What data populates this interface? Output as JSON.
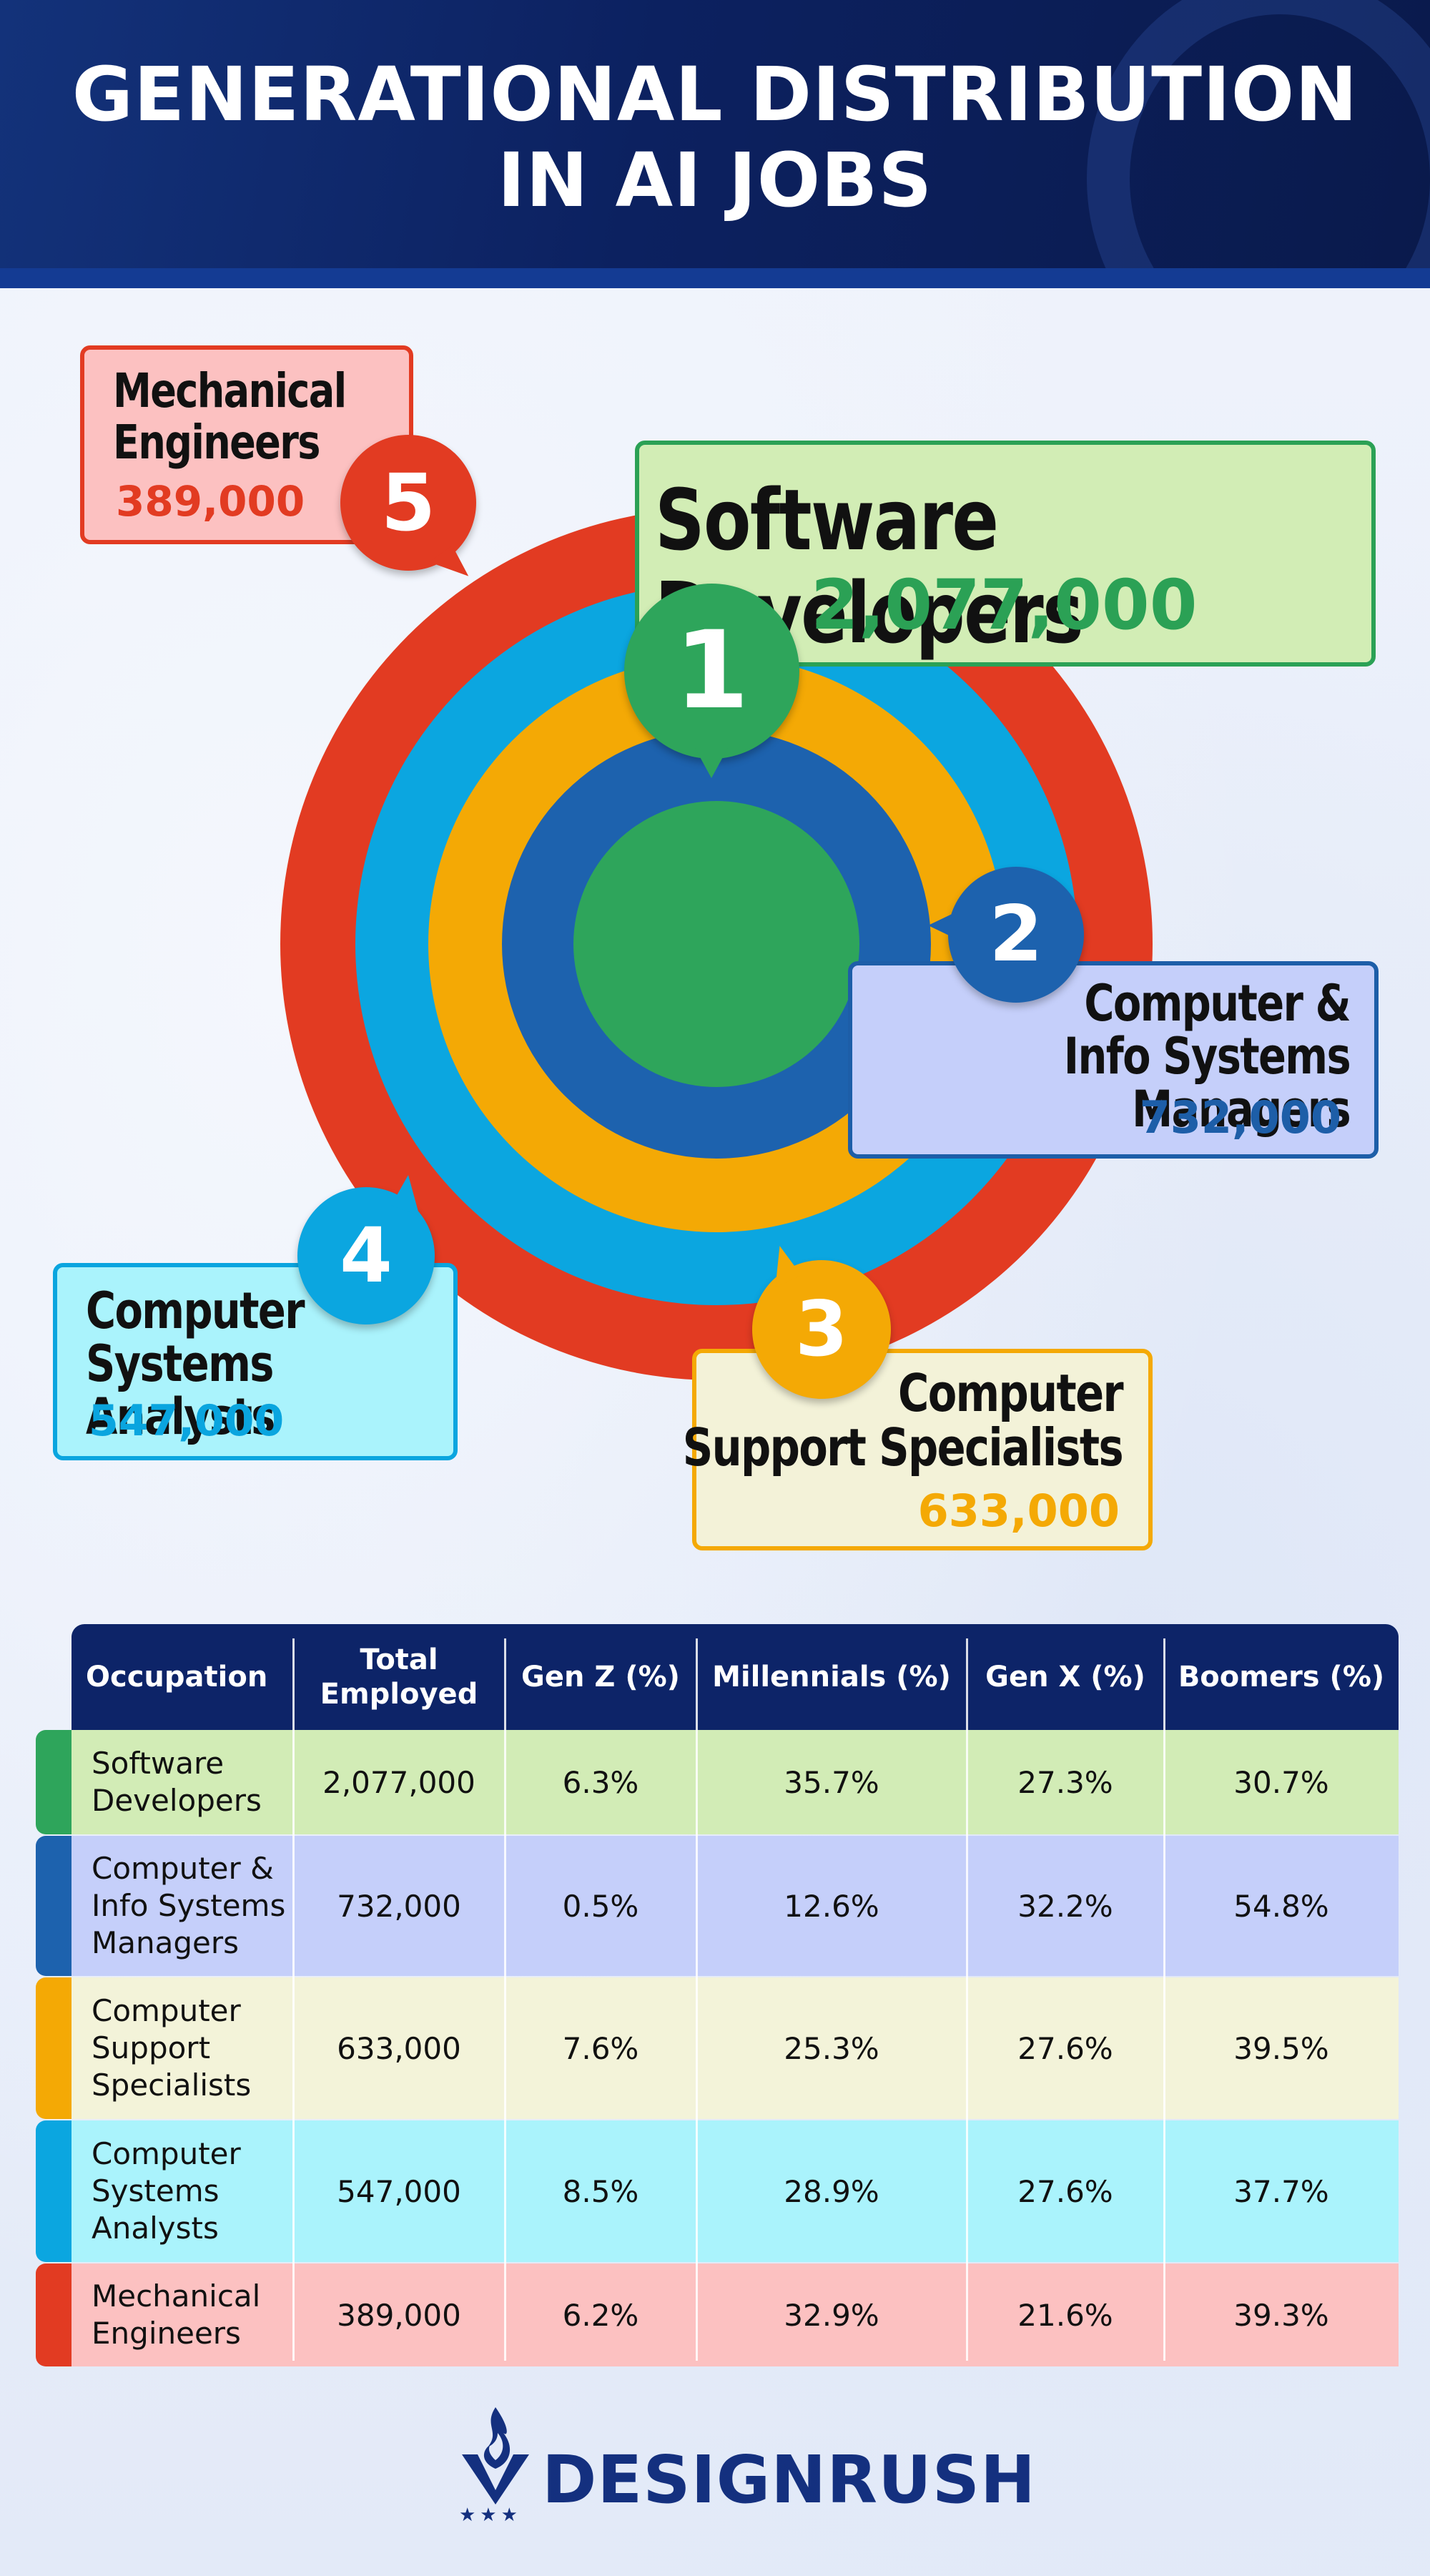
{
  "title": {
    "line1": "GENERATIONAL DISTRIBUTION",
    "line2": "IN AI JOBS"
  },
  "colors": {
    "green": "#2ea55b",
    "blue": "#1d62ae",
    "yellow": "#f4a905",
    "cyan": "#0ba6e0",
    "red": "#e23b22",
    "header_navy": "#0d2468"
  },
  "callouts": {
    "c1": {
      "rank": "1",
      "name": "Software Developers",
      "value": "2,077,000"
    },
    "c2": {
      "rank": "2",
      "name": "Computer &\nInfo Systems Managers",
      "value": "732,000"
    },
    "c3": {
      "rank": "3",
      "name": "Computer\nSupport Specialists",
      "value": "633,000"
    },
    "c4": {
      "rank": "4",
      "name": "Computer\nSystems Analysts",
      "value": "547,000"
    },
    "c5": {
      "rank": "5",
      "name": "Mechanical\nEngineers",
      "value": "389,000"
    }
  },
  "chart_data": [
    {
      "type": "bar",
      "categories": [
        "Software Developers",
        "Computer & Info Systems Managers",
        "Computer Support Specialists",
        "Computer Systems Analysts",
        "Mechanical Engineers"
      ],
      "values": [
        2077000,
        732000,
        633000,
        547000,
        389000
      ],
      "colors": [
        "#2ea55b",
        "#1d62ae",
        "#f4a905",
        "#0ba6e0",
        "#e23b22"
      ],
      "note_style": "concentric rings"
    },
    {
      "type": "table",
      "columns": [
        "Occupation",
        "Total\nEmployed",
        "Gen Z (%)",
        "Millennials (%)",
        "Gen X (%)",
        "Boomers (%)"
      ],
      "rows": [
        {
          "occupation": "Software\nDevelopers",
          "total": "2,077,000",
          "genz": "6.3%",
          "millennials": "35.7%",
          "genx": "27.3%",
          "boomers": "30.7%",
          "bg": "#d2ecb6",
          "stripe": "#2ea55b"
        },
        {
          "occupation": "Computer &\nInfo Systems\nManagers",
          "total": "732,000",
          "genz": "0.5%",
          "millennials": "12.6%",
          "genx": "32.2%",
          "boomers": "54.8%",
          "bg": "#c5cffa",
          "stripe": "#1d62ae"
        },
        {
          "occupation": "Computer\nSupport\nSpecialists",
          "total": "633,000",
          "genz": "7.6%",
          "millennials": "25.3%",
          "genx": "27.6%",
          "boomers": "39.5%",
          "bg": "#f3f3d9",
          "stripe": "#f4a905"
        },
        {
          "occupation": "Computer\nSystems\nAnalysts",
          "total": "547,000",
          "genz": "8.5%",
          "millennials": "28.9%",
          "genx": "27.6%",
          "boomers": "37.7%",
          "bg": "#aaf3fc",
          "stripe": "#0ba6e0"
        },
        {
          "occupation": "Mechanical\nEngineers",
          "total": "389,000",
          "genz": "6.2%",
          "millennials": "32.9%",
          "genx": "21.6%",
          "boomers": "39.3%",
          "bg": "#fcc1c1",
          "stripe": "#e23b22"
        }
      ]
    }
  ],
  "logo": {
    "text": "DESIGNRUSH",
    "stars": "★★★",
    "icon": "flame-shield-icon"
  }
}
